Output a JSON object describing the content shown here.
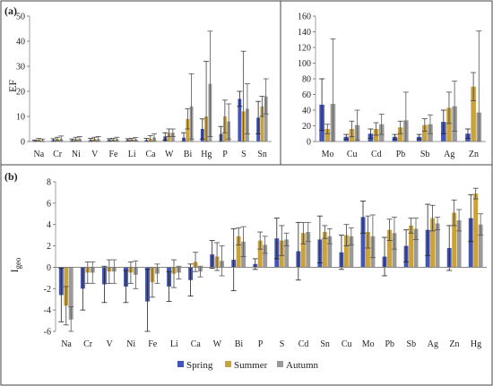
{
  "colors": {
    "Spring": "#4355b8",
    "Summer": "#c9a23c",
    "Autumn": "#9a9a9a",
    "err_Spring": "#222222",
    "err_Summer": "#444444",
    "err_Autumn": "#555555"
  },
  "legend": [
    "Spring",
    "Summer",
    "Autumn"
  ],
  "chart_data": [
    {
      "panel": "(a)",
      "type": "bar",
      "ylabel": "EF",
      "ylim": [
        0,
        50
      ],
      "yticks": [
        0,
        10,
        20,
        30,
        40,
        50
      ],
      "categories": [
        "Na",
        "Cr",
        "Ni",
        "V",
        "Fe",
        "Li",
        "Ca",
        "W",
        "Bi",
        "Hg",
        "P",
        "S",
        "Sn"
      ],
      "series": [
        {
          "name": "Spring",
          "values": [
            0.3,
            0.6,
            0.5,
            0.6,
            0.6,
            0.6,
            0.6,
            2.0,
            1.5,
            5.0,
            3.0,
            17.0,
            9.5
          ],
          "errors": [
            0.3,
            0.5,
            0.5,
            0.6,
            0.5,
            0.5,
            0.6,
            1.5,
            2.0,
            4.0,
            3.0,
            3.0,
            6.5
          ]
        },
        {
          "name": "Summer",
          "values": [
            0.7,
            1.0,
            1.0,
            1.0,
            0.8,
            0.8,
            1.1,
            3.5,
            9.0,
            10.0,
            10.0,
            12.0,
            14.0
          ],
          "errors": [
            0.5,
            0.7,
            0.7,
            0.7,
            0.5,
            0.5,
            1.2,
            1.5,
            4.0,
            22.0,
            6.5,
            24.0,
            4.0
          ]
        },
        {
          "name": "Autumn",
          "values": [
            0.5,
            1.0,
            1.0,
            0.9,
            0.9,
            0.9,
            1.6,
            3.5,
            14.0,
            23.0,
            8.0,
            13.0,
            18.0
          ],
          "errors": [
            0.5,
            1.2,
            1.0,
            1.1,
            0.8,
            0.7,
            1.5,
            1.5,
            13.0,
            21.0,
            7.0,
            10.0,
            7.0
          ]
        }
      ]
    },
    {
      "panel": "",
      "type": "bar",
      "ylabel": "",
      "ylim": [
        0,
        160
      ],
      "yticks": [
        0,
        20,
        40,
        60,
        80,
        100,
        120,
        140,
        160
      ],
      "categories": [
        "Mo",
        "Cu",
        "Cd",
        "Pb",
        "Sb",
        "Ag",
        "Zn"
      ],
      "series": [
        {
          "name": "Spring",
          "values": [
            47,
            6,
            10,
            6,
            6,
            25,
            10
          ],
          "errors": [
            33,
            3,
            6,
            3,
            3,
            15,
            6
          ]
        },
        {
          "name": "Summer",
          "values": [
            16,
            16,
            16,
            18,
            21,
            43,
            70
          ],
          "errors": [
            6,
            10,
            8,
            8,
            8,
            20,
            18
          ]
        },
        {
          "name": "Autumn",
          "values": [
            48,
            21,
            22,
            27,
            22,
            45,
            37
          ],
          "errors": [
            83,
            19,
            13,
            36,
            12,
            32,
            104
          ]
        }
      ]
    },
    {
      "panel": "(b)",
      "type": "bar",
      "ylabel": "I",
      "ylabel_sub": "geo",
      "ylim": [
        -6,
        8
      ],
      "yticks": [
        -6,
        -4,
        -2,
        0,
        2,
        4,
        6,
        8
      ],
      "categories": [
        "Na",
        "Cr",
        "V",
        "Ni",
        "Fe",
        "Li",
        "Ca",
        "W",
        "Bi",
        "P",
        "S",
        "Cd",
        "Sn",
        "Cu",
        "Mo",
        "Pb",
        "Sb",
        "Ag",
        "Zn",
        "Hg"
      ],
      "series": [
        {
          "name": "Spring",
          "values": [
            -2.6,
            -2.0,
            -1.6,
            -1.8,
            -3.2,
            -1.8,
            -1.2,
            1.2,
            0.7,
            0.3,
            2.7,
            1.5,
            2.6,
            1.4,
            4.7,
            1.0,
            2.0,
            3.5,
            1.8,
            4.6
          ],
          "errors": [
            2.5,
            2.0,
            1.7,
            1.5,
            3.0,
            1.4,
            1.5,
            1.3,
            2.9,
            0.5,
            1.9,
            2.7,
            2.2,
            1.6,
            1.5,
            1.8,
            1.5,
            2.4,
            2.1,
            2.2
          ]
        },
        {
          "name": "Summer",
          "values": [
            -3.6,
            -0.5,
            -0.4,
            -0.5,
            -1.4,
            -0.6,
            0.5,
            1.0,
            2.9,
            2.5,
            2.5,
            3.2,
            3.3,
            3.0,
            3.3,
            3.5,
            3.9,
            4.6,
            5.1,
            6.9
          ],
          "errors": [
            1.8,
            1.0,
            1.1,
            1.0,
            1.4,
            1.3,
            0.9,
            1.3,
            0.8,
            0.8,
            1.4,
            1.0,
            0.6,
            1.0,
            1.5,
            1.0,
            0.7,
            1.2,
            1.2,
            0.5
          ]
        },
        {
          "name": "Autumn",
          "values": [
            -4.9,
            -0.5,
            -0.4,
            -0.7,
            -0.6,
            -0.5,
            -0.4,
            0.6,
            2.4,
            2.1,
            2.6,
            3.3,
            2.9,
            2.9,
            2.9,
            3.2,
            3.6,
            4.1,
            4.4,
            4.0
          ],
          "errors": [
            1.2,
            1.0,
            1.1,
            1.3,
            0.9,
            0.6,
            0.5,
            1.4,
            1.4,
            0.8,
            0.6,
            0.9,
            0.7,
            0.8,
            2.0,
            1.5,
            1.0,
            0.6,
            1.0,
            1.0
          ]
        }
      ]
    }
  ]
}
